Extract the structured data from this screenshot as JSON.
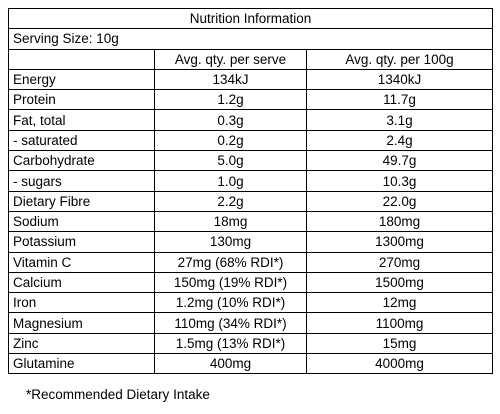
{
  "title": "Nutrition Information",
  "serving_size": "Serving Size: 10g",
  "headers": {
    "nutrient": "",
    "per_serve": "Avg. qty. per serve",
    "per_100g": "Avg. qty. per 100g"
  },
  "rows": [
    {
      "name": "Energy",
      "per_serve": "134kJ",
      "per_100g": "1340kJ"
    },
    {
      "name": "Protein",
      "per_serve": "1.2g",
      "per_100g": "11.7g"
    },
    {
      "name": "Fat, total",
      "per_serve": "0.3g",
      "per_100g": "3.1g"
    },
    {
      "name": "- saturated",
      "per_serve": "0.2g",
      "per_100g": "2.4g"
    },
    {
      "name": "Carbohydrate",
      "per_serve": "5.0g",
      "per_100g": "49.7g"
    },
    {
      "name": "- sugars",
      "per_serve": "1.0g",
      "per_100g": "10.3g"
    },
    {
      "name": "Dietary Fibre",
      "per_serve": "2.2g",
      "per_100g": "22.0g"
    },
    {
      "name": "Sodium",
      "per_serve": "18mg",
      "per_100g": "180mg"
    },
    {
      "name": "Potassium",
      "per_serve": "130mg",
      "per_100g": "1300mg"
    },
    {
      "name": "Vitamin C",
      "per_serve": "27mg (68% RDI*)",
      "per_100g": "270mg"
    },
    {
      "name": "Calcium",
      "per_serve": "150mg (19% RDI*)",
      "per_100g": "1500mg"
    },
    {
      "name": "Iron",
      "per_serve": "1.2mg (10% RDI*)",
      "per_100g": "12mg"
    },
    {
      "name": "Magnesium",
      "per_serve": "110mg (34% RDI*)",
      "per_100g": "1100mg"
    },
    {
      "name": "Zinc",
      "per_serve": "1.5mg (13% RDI*)",
      "per_100g": "15mg"
    },
    {
      "name": "Glutamine",
      "per_serve": "400mg",
      "per_100g": "4000mg"
    }
  ],
  "footnote": "*Recommended Dietary Intake"
}
